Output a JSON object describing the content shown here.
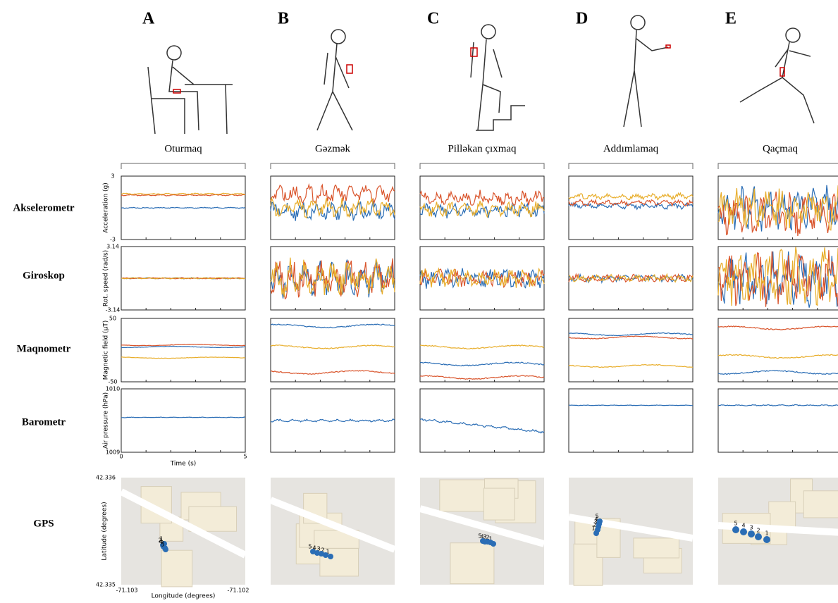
{
  "columns": [
    {
      "letter": "A",
      "activity": "Oturmaq"
    },
    {
      "letter": "B",
      "activity": "Gəzmək"
    },
    {
      "letter": "C",
      "activity": "Pilləkan çıxmaq"
    },
    {
      "letter": "D",
      "activity": "Addımlamaq"
    },
    {
      "letter": "E",
      "activity": "Qaçmaq"
    }
  ],
  "rows": [
    "Akselerometr",
    "Giroskop",
    "Maqnometr",
    "Barometr",
    "GPS"
  ],
  "sensor_axes": [
    {
      "label": "Acceleration (g)",
      "ticks": [
        "3",
        "-3"
      ]
    },
    {
      "label": "Rot. speed  (rad/s)",
      "ticks": [
        "3.14",
        "-3.14"
      ]
    },
    {
      "label": "Magnetic field (µT)",
      "ticks": [
        "50",
        "-50"
      ]
    },
    {
      "label": "Air pressure (hPa)",
      "ticks": [
        "1010",
        "1009"
      ]
    }
  ],
  "time_axis": {
    "label": "Time (s)",
    "ticks": [
      "0",
      "5"
    ]
  },
  "gps_axes": {
    "lat_label": "Latitude (degrees)",
    "lat_ticks": [
      "42.336",
      "42.335"
    ],
    "lon_label": "Longitude (degrees)",
    "lon_ticks": [
      "-71.103",
      "-71.102"
    ]
  },
  "gps_point_labels": [
    "1",
    "2",
    "3",
    "4",
    "5"
  ]
}
